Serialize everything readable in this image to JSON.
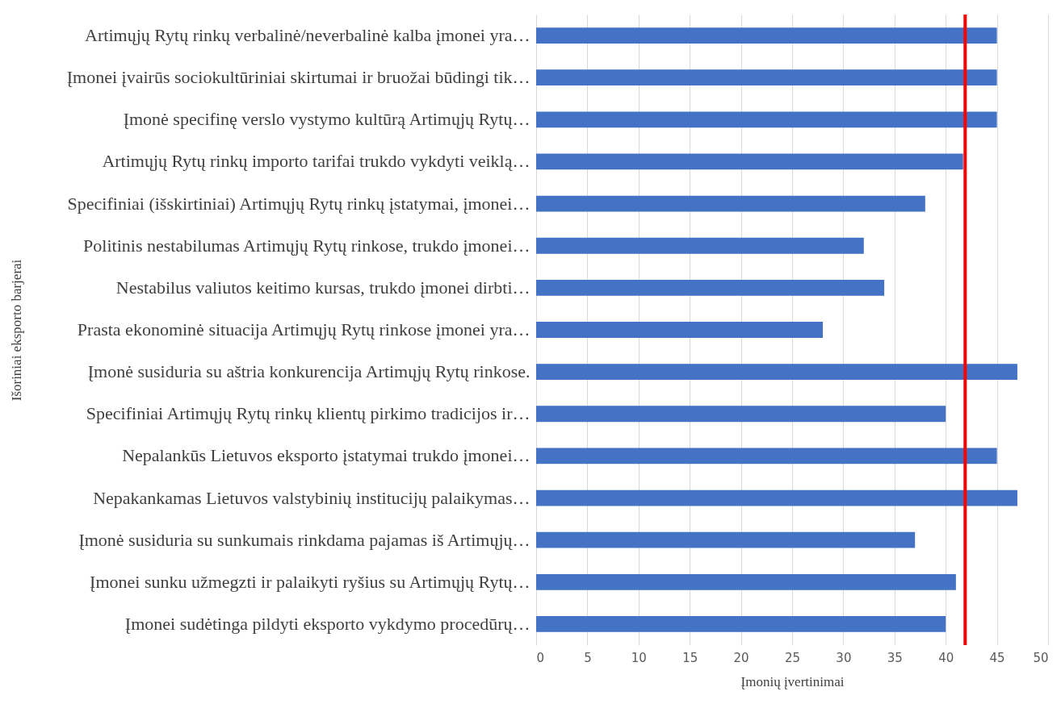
{
  "chart_data": {
    "type": "bar",
    "orientation": "horizontal",
    "xlabel": "Įmonių įvertinimai",
    "ylabel": "Išoriniai eksporto barjerai",
    "categories": [
      "Artimųjų Rytų rinkų verbalinė/neverbalinė kalba įmonei yra…",
      "Įmonei įvairūs sociokultūriniai skirtumai ir bruožai būdingi tik…",
      "Įmonė specifinę verslo vystymo kultūrą Artimųjų Rytų…",
      "Artimųjų Rytų rinkų importo tarifai trukdo vykdyti veiklą…",
      "Specifiniai (išskirtiniai) Artimųjų Rytų rinkų įstatymai, įmonei…",
      "Politinis nestabilumas Artimųjų Rytų rinkose, trukdo įmonei…",
      "Nestabilus valiutos keitimo kursas, trukdo įmonei dirbti…",
      "Prasta ekonominė situacija Artimųjų Rytų rinkose įmonei yra…",
      "Įmonė susiduria su aštria konkurencija Artimųjų Rytų rinkose.",
      "Specifiniai Artimųjų Rytų rinkų klientų pirkimo tradicijos ir…",
      "Nepalankūs Lietuvos eksporto įstatymai trukdo įmonei…",
      "Nepakankamas Lietuvos valstybinių institucijų palaikymas…",
      "Įmonė susiduria su sunkumais rinkdama pajamas iš Artimųjų…",
      "Įmonei sunku užmegzti ir palaikyti ryšius su Artimųjų Rytų…",
      "Įmonei sudėtinga pildyti eksporto vykdymo procedūrų…"
    ],
    "values": [
      45,
      45,
      45,
      41.7,
      38,
      32,
      34,
      28,
      47,
      40,
      45,
      47,
      37,
      41,
      40
    ],
    "color": "#4472c4",
    "xlim": [
      0,
      50
    ],
    "xticks": [
      0,
      5,
      10,
      15,
      20,
      25,
      30,
      35,
      40,
      45,
      50
    ],
    "grid": "x",
    "ref_lines": [
      {
        "axis": "x",
        "value": 41.9,
        "color": "#ff0000"
      }
    ]
  }
}
